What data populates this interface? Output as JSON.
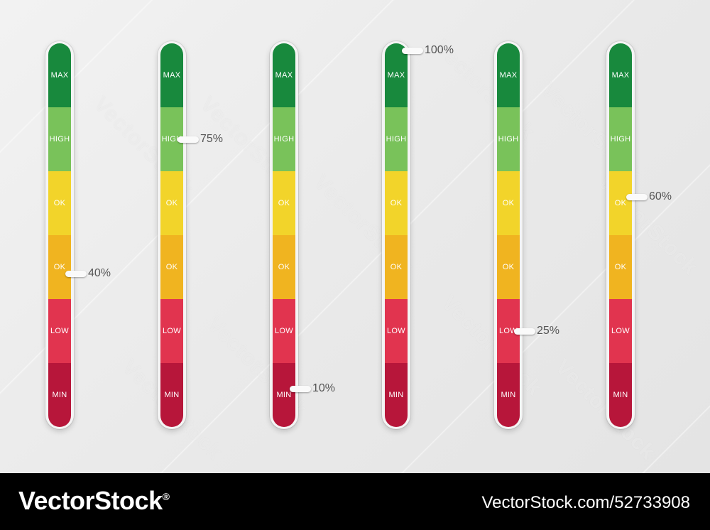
{
  "segments": [
    {
      "label": "MAX",
      "color": "#18893d"
    },
    {
      "label": "HIGH",
      "color": "#79c25a"
    },
    {
      "label": "OK",
      "color": "#f2d42a"
    },
    {
      "label": "OK",
      "color": "#f0b420"
    },
    {
      "label": "LOW",
      "color": "#e1344f"
    },
    {
      "label": "MIN",
      "color": "#b7163a"
    }
  ],
  "meters": [
    {
      "value": 40,
      "label": "40%"
    },
    {
      "value": 75,
      "label": "75%"
    },
    {
      "value": 10,
      "label": "10%"
    },
    {
      "value": 100,
      "label": "100%"
    },
    {
      "value": 25,
      "label": "25%"
    },
    {
      "value": 60,
      "label": "60%"
    }
  ],
  "watermark": "VectorStock",
  "footer": {
    "brand": "VectorStock",
    "brand_mark": "®",
    "credit": "VectorStock.com/52733908"
  }
}
